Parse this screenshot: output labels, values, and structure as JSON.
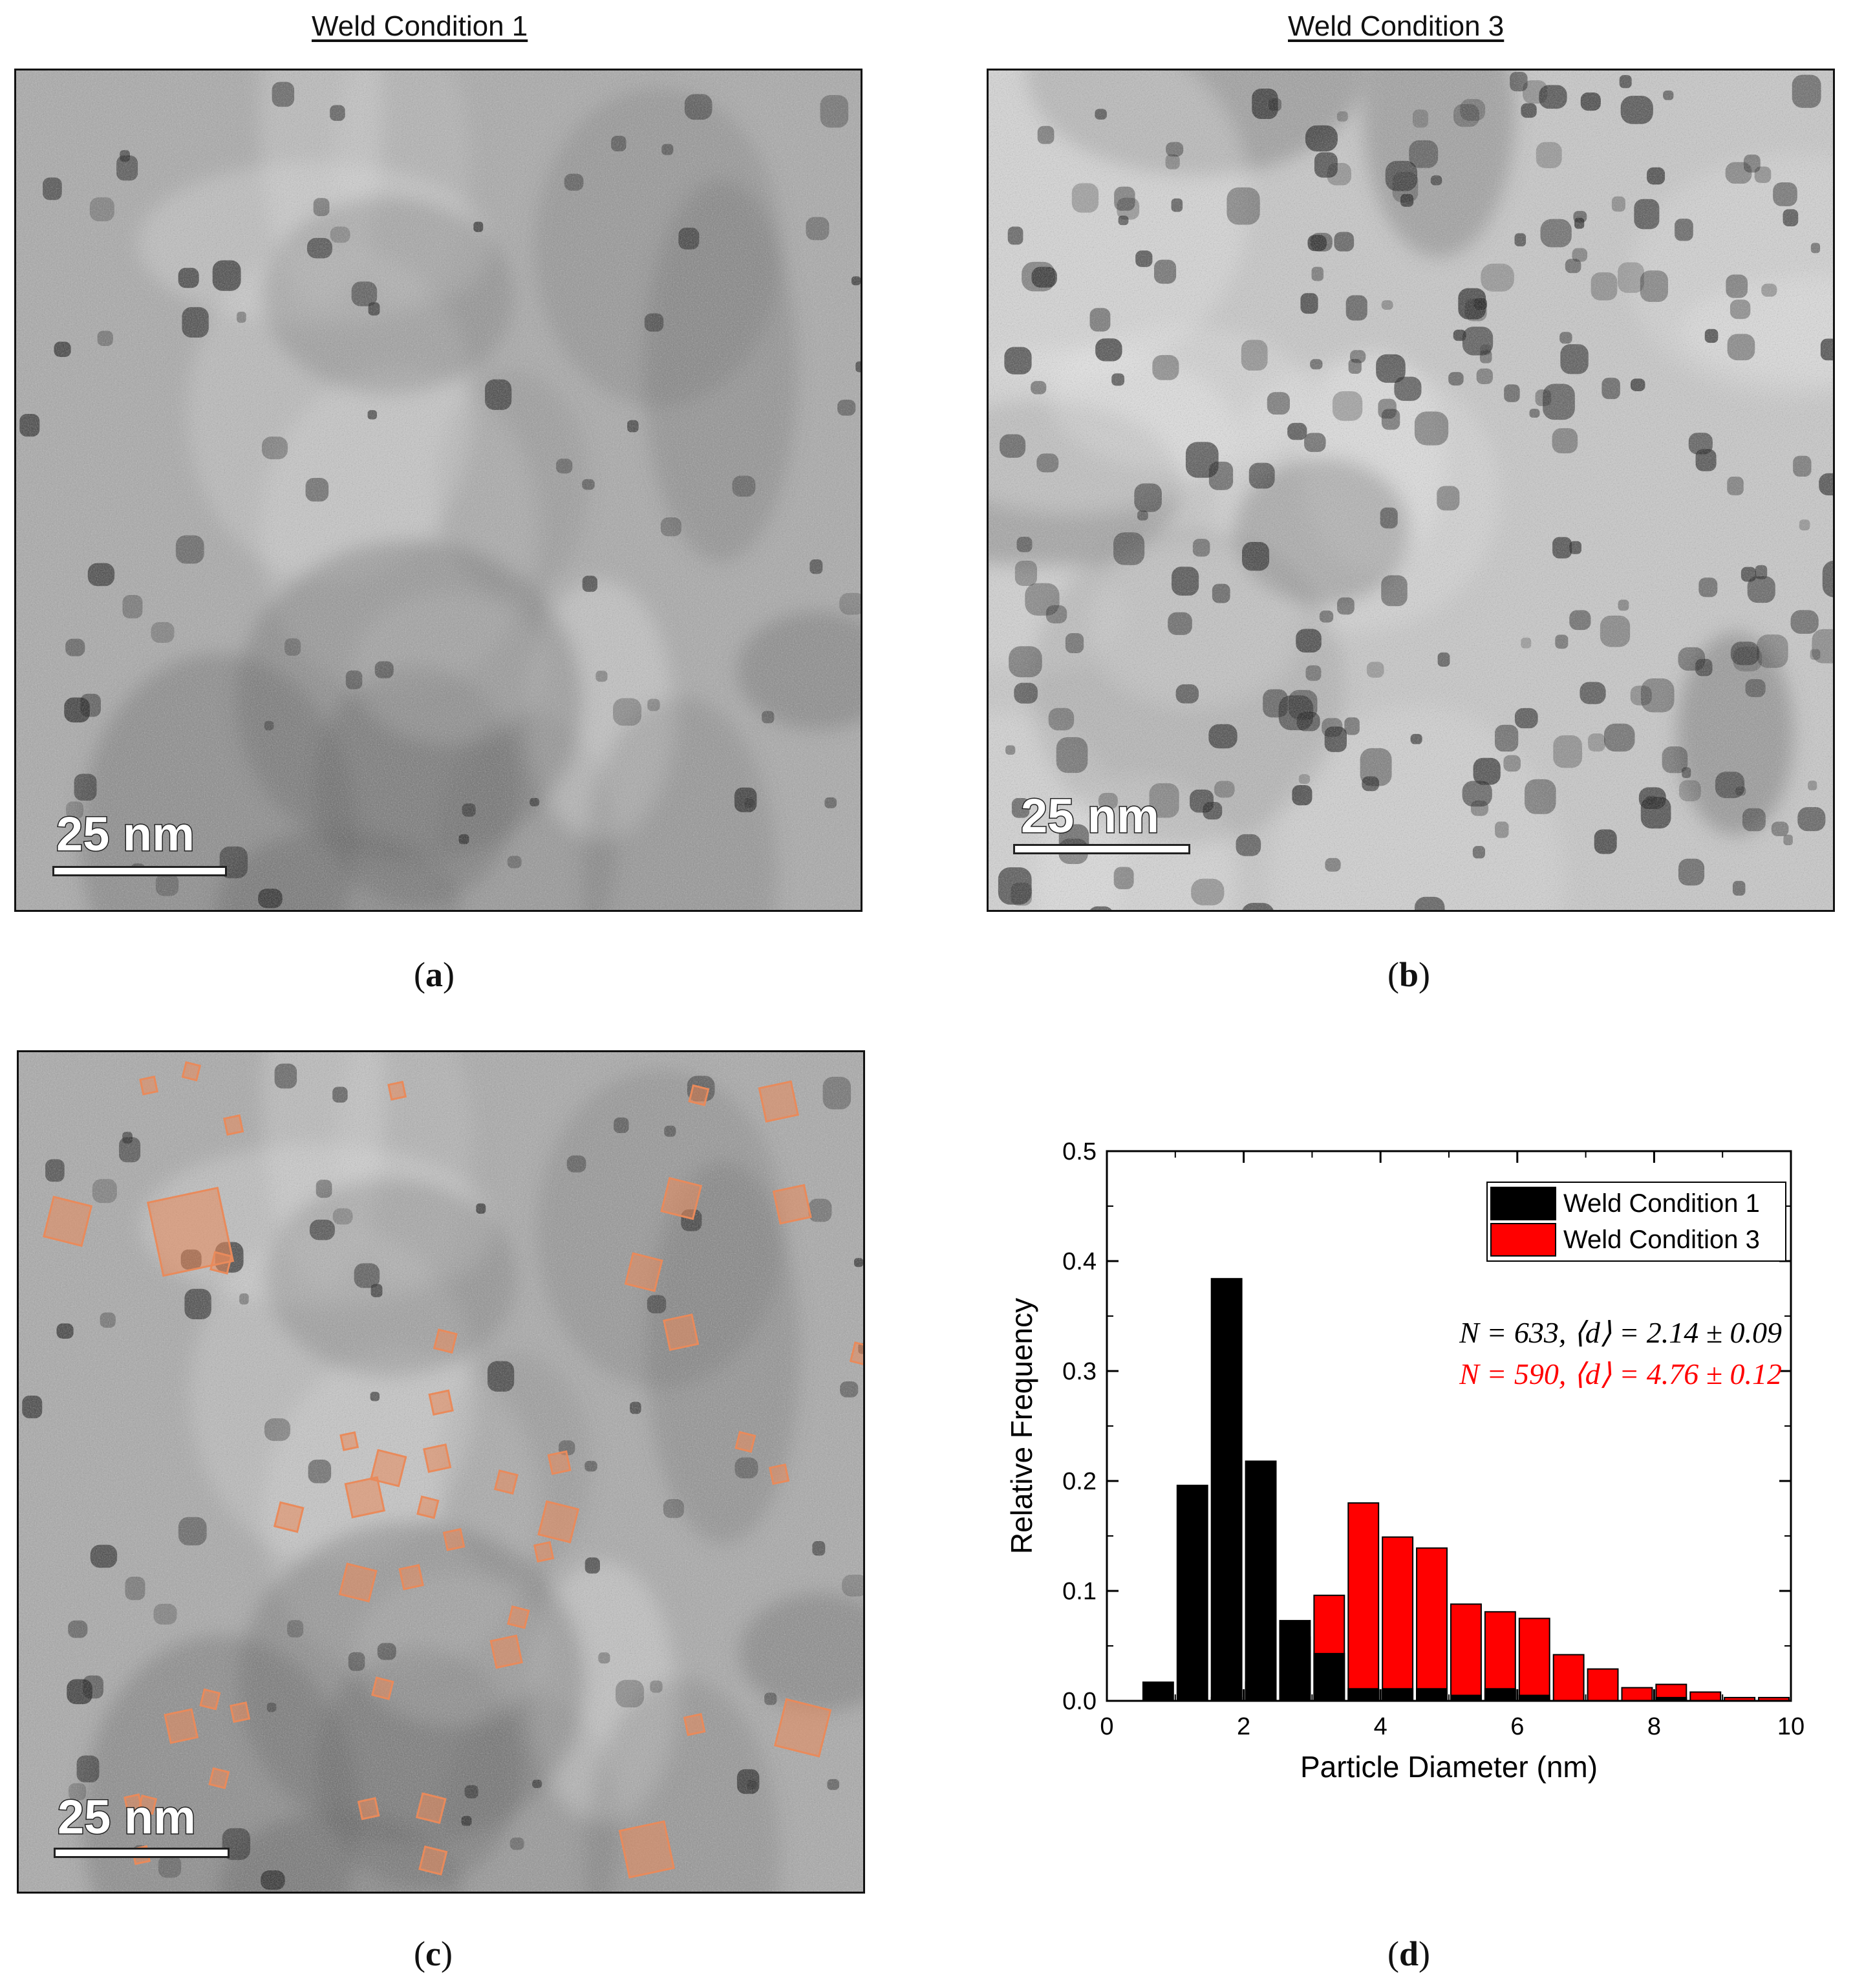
{
  "panels": {
    "a": {
      "title": "Weld Condition 1",
      "caption": "a",
      "scale_label": "25 nm"
    },
    "b": {
      "title": "Weld Condition 3",
      "caption": "b",
      "scale_label": "25 nm"
    },
    "c": {
      "caption": "c",
      "scale_label": "25 nm"
    },
    "d": {
      "caption": "d"
    }
  },
  "colors": {
    "condition1": "#000000",
    "condition3": "#ff0000",
    "overlay": "#e98a5b"
  },
  "chart_data": {
    "type": "bar",
    "xlabel": "Particle Diameter (nm)",
    "ylabel": "Relative Frequency",
    "xlim": [
      0,
      10
    ],
    "ylim": [
      0,
      0.5
    ],
    "x_ticks": [
      "0",
      "2",
      "4",
      "6",
      "8",
      "10"
    ],
    "y_ticks": [
      "0.0",
      "0.1",
      "0.2",
      "0.3",
      "0.4",
      "0.5"
    ],
    "grid": false,
    "legend_position": "top-right",
    "bin_width": 0.5,
    "bin_starts": [
      0.5,
      1.0,
      1.5,
      2.0,
      2.5,
      3.0,
      3.5,
      4.0,
      4.5,
      5.0,
      5.5,
      6.0,
      6.5,
      7.0,
      7.5,
      8.0,
      8.5,
      9.0,
      9.5
    ],
    "series": [
      {
        "name": "Weld Condition 1",
        "color": "#000000",
        "values": [
          0.017,
          0.196,
          0.384,
          0.218,
          0.073,
          0.043,
          0.011,
          0.011,
          0.011,
          0.005,
          0.011,
          0.005,
          0.0,
          0.0,
          0.0,
          0.003,
          0.0,
          0.0,
          0.0
        ]
      },
      {
        "name": "Weld Condition 3",
        "color": "#ff0000",
        "values": [
          0.0,
          0.0,
          0.003,
          0.017,
          0.058,
          0.096,
          0.18,
          0.149,
          0.139,
          0.088,
          0.081,
          0.075,
          0.042,
          0.029,
          0.012,
          0.015,
          0.008,
          0.003,
          0.003
        ]
      }
    ],
    "annotations": [
      {
        "text": "N = 633, ⟨d⟩ = 2.14 ± 0.09",
        "color": "#000000"
      },
      {
        "text": "N = 590, ⟨d⟩ = 4.76 ± 0.12",
        "color": "#ff0000"
      }
    ]
  }
}
